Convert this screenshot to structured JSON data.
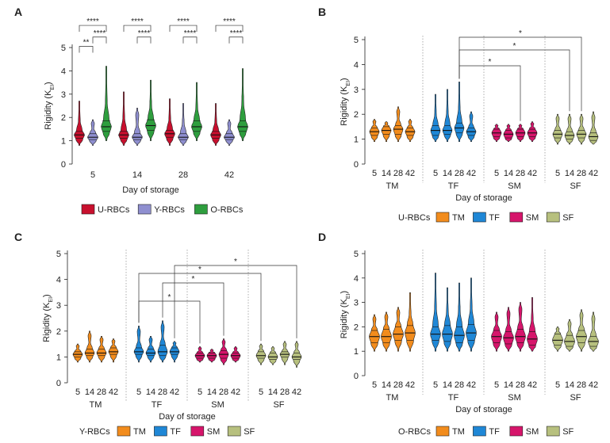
{
  "figure": {
    "colors": {
      "U-RBCs": "#c8102e",
      "Y-RBCs": "#8f8fd0",
      "O-RBCs": "#2e9e3e",
      "TM": "#f28c1d",
      "TF": "#1f87d6",
      "SM": "#d6156b",
      "SF": "#b7c07e"
    }
  },
  "chart_data": [
    {
      "panel": "A",
      "type": "violin",
      "xlabel": "Day of storage",
      "ylabel": "Rigidity (K_EI)",
      "ylim": [
        0,
        5
      ],
      "yticks": [
        0,
        1,
        2,
        3,
        4,
        5
      ],
      "categories": [
        "5",
        "14",
        "28",
        "42"
      ],
      "legend": [
        "U-RBCs",
        "Y-RBCs",
        "O-RBCs"
      ],
      "series": [
        {
          "name": "U-RBCs",
          "medians": [
            1.25,
            1.25,
            1.3,
            1.25
          ],
          "q1": [
            1.1,
            1.1,
            1.15,
            1.1
          ],
          "q3": [
            1.4,
            1.4,
            1.45,
            1.4
          ],
          "min": [
            0.8,
            0.8,
            0.8,
            0.8
          ],
          "max": [
            2.7,
            3.1,
            2.8,
            2.6
          ]
        },
        {
          "name": "Y-RBCs",
          "medians": [
            1.15,
            1.15,
            1.15,
            1.15
          ],
          "q1": [
            1.05,
            1.05,
            1.05,
            1.05
          ],
          "q3": [
            1.3,
            1.3,
            1.3,
            1.3
          ],
          "min": [
            0.8,
            0.8,
            0.8,
            0.8
          ],
          "max": [
            1.9,
            2.4,
            2.6,
            1.9
          ]
        },
        {
          "name": "O-RBCs",
          "medians": [
            1.6,
            1.65,
            1.6,
            1.6
          ],
          "q1": [
            1.4,
            1.45,
            1.4,
            1.4
          ],
          "q3": [
            1.85,
            1.9,
            1.85,
            1.85
          ],
          "min": [
            1.0,
            1.0,
            1.0,
            1.0
          ],
          "max": [
            4.2,
            3.6,
            3.5,
            4.1
          ]
        }
      ],
      "annotations": [
        {
          "from": [
            "5",
            "U-RBCs"
          ],
          "to": [
            "5",
            "Y-RBCs"
          ],
          "label": "**",
          "level": 0
        },
        {
          "from": [
            "5",
            "Y-RBCs"
          ],
          "to": [
            "5",
            "O-RBCs"
          ],
          "label": "****",
          "level": 1
        },
        {
          "from": [
            "5",
            "U-RBCs"
          ],
          "to": [
            "5",
            "O-RBCs"
          ],
          "label": "****",
          "level": 2
        },
        {
          "from": [
            "14",
            "Y-RBCs"
          ],
          "to": [
            "14",
            "O-RBCs"
          ],
          "label": "****",
          "level": 1
        },
        {
          "from": [
            "14",
            "U-RBCs"
          ],
          "to": [
            "14",
            "O-RBCs"
          ],
          "label": "****",
          "level": 2
        },
        {
          "from": [
            "28",
            "Y-RBCs"
          ],
          "to": [
            "28",
            "O-RBCs"
          ],
          "label": "****",
          "level": 1
        },
        {
          "from": [
            "28",
            "U-RBCs"
          ],
          "to": [
            "28",
            "O-RBCs"
          ],
          "label": "****",
          "level": 2
        },
        {
          "from": [
            "42",
            "Y-RBCs"
          ],
          "to": [
            "42",
            "O-RBCs"
          ],
          "label": "****",
          "level": 1
        },
        {
          "from": [
            "42",
            "U-RBCs"
          ],
          "to": [
            "42",
            "O-RBCs"
          ],
          "label": "****",
          "level": 2
        }
      ]
    },
    {
      "panel": "B",
      "type": "violin",
      "xlabel": "Day of storage",
      "ylabel": "Rigidity (K_EI)",
      "ylim": [
        0,
        5
      ],
      "yticks": [
        0,
        1,
        2,
        3,
        4,
        5
      ],
      "groups": [
        "TM",
        "TF",
        "SM",
        "SF"
      ],
      "days": [
        "5",
        "14",
        "28",
        "42"
      ],
      "legend_title": "U-RBCs",
      "legend": [
        "TM",
        "TF",
        "SM",
        "SF"
      ],
      "series": [
        {
          "name": "TM",
          "medians": [
            1.3,
            1.35,
            1.4,
            1.3
          ],
          "q1": [
            1.15,
            1.2,
            1.2,
            1.15
          ],
          "q3": [
            1.45,
            1.5,
            1.55,
            1.45
          ],
          "min": [
            0.9,
            0.9,
            0.9,
            0.9
          ],
          "max": [
            1.8,
            1.7,
            2.3,
            1.8
          ]
        },
        {
          "name": "TF",
          "medians": [
            1.35,
            1.35,
            1.45,
            1.3
          ],
          "q1": [
            1.15,
            1.2,
            1.25,
            1.15
          ],
          "q3": [
            1.55,
            1.55,
            1.65,
            1.45
          ],
          "min": [
            0.9,
            0.9,
            0.9,
            0.9
          ],
          "max": [
            2.8,
            3.0,
            3.3,
            2.1
          ]
        },
        {
          "name": "SM",
          "medians": [
            1.25,
            1.2,
            1.25,
            1.25
          ],
          "q1": [
            1.1,
            1.05,
            1.1,
            1.1
          ],
          "q3": [
            1.4,
            1.35,
            1.4,
            1.4
          ],
          "min": [
            0.9,
            0.9,
            0.9,
            0.9
          ],
          "max": [
            1.6,
            1.6,
            1.6,
            1.7
          ]
        },
        {
          "name": "SF",
          "medians": [
            1.2,
            1.15,
            1.2,
            1.1
          ],
          "q1": [
            1.05,
            1.0,
            1.05,
            0.95
          ],
          "q3": [
            1.35,
            1.3,
            1.35,
            1.25
          ],
          "min": [
            0.8,
            0.8,
            0.8,
            0.8
          ],
          "max": [
            2.0,
            2.0,
            2.0,
            2.1
          ]
        }
      ],
      "annotations": [
        {
          "from": [
            "TF",
            "28"
          ],
          "to": [
            "SM",
            "28"
          ],
          "label": "*",
          "level": 0
        },
        {
          "from": [
            "TF",
            "28"
          ],
          "to": [
            "SF",
            "14"
          ],
          "label": "*",
          "level": 1
        },
        {
          "from": [
            "TF",
            "28"
          ],
          "to": [
            "SF",
            "28"
          ],
          "label": "*",
          "level": 2
        }
      ]
    },
    {
      "panel": "C",
      "type": "violin",
      "xlabel": "Day of storage",
      "ylabel": "Rigidity (K_EI)",
      "ylim": [
        0,
        5
      ],
      "yticks": [
        0,
        1,
        2,
        3,
        4,
        5
      ],
      "groups": [
        "TM",
        "TF",
        "SM",
        "SF"
      ],
      "days": [
        "5",
        "14",
        "28",
        "42"
      ],
      "legend_title": "Y-RBCs",
      "legend": [
        "TM",
        "TF",
        "SM",
        "SF"
      ],
      "series": [
        {
          "name": "TM",
          "medians": [
            1.1,
            1.15,
            1.15,
            1.2
          ],
          "q1": [
            1.0,
            1.05,
            1.05,
            1.1
          ],
          "q3": [
            1.2,
            1.3,
            1.3,
            1.35
          ],
          "min": [
            0.8,
            0.8,
            0.8,
            0.8
          ],
          "max": [
            1.5,
            2.0,
            1.8,
            1.7
          ]
        },
        {
          "name": "TF",
          "medians": [
            1.2,
            1.15,
            1.2,
            1.2
          ],
          "q1": [
            1.1,
            1.05,
            1.05,
            1.1
          ],
          "q3": [
            1.35,
            1.3,
            1.45,
            1.35
          ],
          "min": [
            0.8,
            0.8,
            0.8,
            0.8
          ],
          "max": [
            2.2,
            1.8,
            2.4,
            1.6
          ]
        },
        {
          "name": "SM",
          "medians": [
            1.05,
            1.05,
            1.1,
            1.05
          ],
          "q1": [
            0.95,
            0.95,
            0.95,
            0.95
          ],
          "q3": [
            1.15,
            1.15,
            1.25,
            1.15
          ],
          "min": [
            0.8,
            0.8,
            0.7,
            0.8
          ],
          "max": [
            1.4,
            1.3,
            1.7,
            1.4
          ]
        },
        {
          "name": "SF",
          "medians": [
            1.05,
            1.0,
            1.1,
            1.0
          ],
          "q1": [
            0.95,
            0.9,
            1.0,
            0.9
          ],
          "q3": [
            1.2,
            1.15,
            1.2,
            1.15
          ],
          "min": [
            0.7,
            0.7,
            0.7,
            0.6
          ],
          "max": [
            1.5,
            1.4,
            1.6,
            1.6
          ]
        }
      ],
      "annotations": [
        {
          "from": [
            "TF",
            "5"
          ],
          "to": [
            "SM",
            "5"
          ],
          "label": "*",
          "level": 0
        },
        {
          "from": [
            "TF",
            "28"
          ],
          "to": [
            "SM",
            "28"
          ],
          "label": "*",
          "level": 1
        },
        {
          "from": [
            "TF",
            "5"
          ],
          "to": [
            "SF",
            "5"
          ],
          "label": "*",
          "level": 2
        },
        {
          "from": [
            "TF",
            "42"
          ],
          "to": [
            "SF",
            "42"
          ],
          "label": "*",
          "level": 3
        }
      ]
    },
    {
      "panel": "D",
      "type": "violin",
      "xlabel": "Day of storage",
      "ylabel": "Rigidity (K_EI)",
      "ylim": [
        0,
        5
      ],
      "yticks": [
        0,
        1,
        2,
        3,
        4,
        5
      ],
      "groups": [
        "TM",
        "TF",
        "SM",
        "SF"
      ],
      "days": [
        "5",
        "14",
        "28",
        "42"
      ],
      "legend_title": "O-RBCs",
      "legend": [
        "TM",
        "TF",
        "SM",
        "SF"
      ],
      "series": [
        {
          "name": "TM",
          "medians": [
            1.6,
            1.6,
            1.7,
            1.75
          ],
          "q1": [
            1.35,
            1.35,
            1.45,
            1.45
          ],
          "q3": [
            1.85,
            1.9,
            2.0,
            2.05
          ],
          "min": [
            1.0,
            1.0,
            1.0,
            1.0
          ],
          "max": [
            2.5,
            2.6,
            2.8,
            3.4
          ]
        },
        {
          "name": "TF",
          "medians": [
            1.7,
            1.7,
            1.65,
            1.75
          ],
          "q1": [
            1.45,
            1.4,
            1.35,
            1.45
          ],
          "q3": [
            2.0,
            2.05,
            2.0,
            2.1
          ],
          "min": [
            1.0,
            1.0,
            1.0,
            1.0
          ],
          "max": [
            4.2,
            3.6,
            3.8,
            4.0
          ]
        },
        {
          "name": "SM",
          "medians": [
            1.6,
            1.55,
            1.6,
            1.5
          ],
          "q1": [
            1.35,
            1.3,
            1.35,
            1.25
          ],
          "q3": [
            1.85,
            1.8,
            1.9,
            1.8
          ],
          "min": [
            1.0,
            1.0,
            1.0,
            1.0
          ],
          "max": [
            2.6,
            2.8,
            3.0,
            3.2
          ]
        },
        {
          "name": "SF",
          "medians": [
            1.45,
            1.4,
            1.6,
            1.4
          ],
          "q1": [
            1.25,
            1.2,
            1.35,
            1.2
          ],
          "q3": [
            1.7,
            1.65,
            1.85,
            1.6
          ],
          "min": [
            1.0,
            1.0,
            1.0,
            1.0
          ],
          "max": [
            2.0,
            2.3,
            2.7,
            2.6
          ]
        }
      ],
      "annotations": []
    }
  ]
}
